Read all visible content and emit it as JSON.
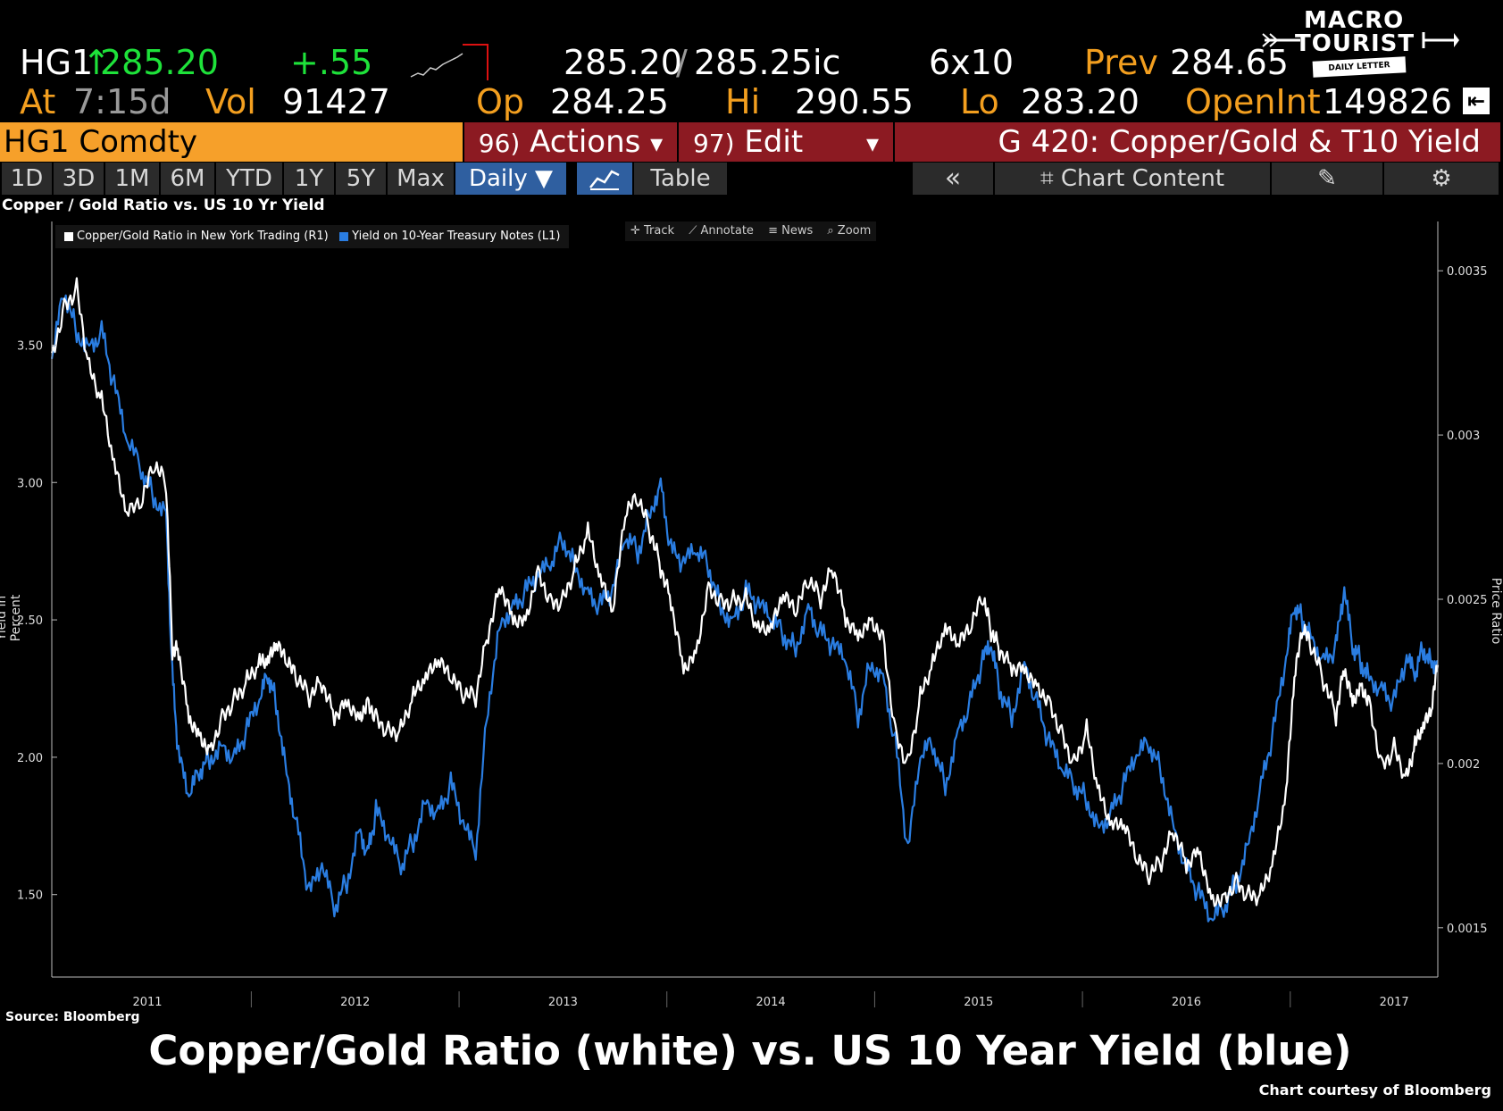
{
  "quote": {
    "ticker": "HG1",
    "arrow": "↑",
    "last": "285.20",
    "change": "+.55",
    "bid": "285.20",
    "ask": "285.25ic",
    "size": "6x10",
    "prev_label": "Prev",
    "prev": "284.65",
    "at_label": "At",
    "time": "7:15d",
    "vol_label": "Vol",
    "vol": "91427",
    "op_label": "Op",
    "op": "284.25",
    "hi_label": "Hi",
    "hi": "290.55",
    "lo_label": "Lo",
    "lo": "283.20",
    "openint_label": "OpenInt",
    "openint": "149826"
  },
  "logo": {
    "line1": "MACRO",
    "line2": "TOURIST",
    "tag": "DAILY LETTER"
  },
  "ticker_bar": {
    "security": "HG1 Comdty",
    "actions_num": "96)",
    "actions": "Actions",
    "edit_num": "97)",
    "edit": "Edit",
    "title": "G 420: Copper/Gold & T10 Yield"
  },
  "tabs": {
    "periods": [
      "1D",
      "3D",
      "1M",
      "6M",
      "YTD",
      "1Y",
      "5Y",
      "Max"
    ],
    "frequency": "Daily ▼",
    "table": "Table",
    "collapse": "«",
    "chart_content": "Chart Content"
  },
  "tools": {
    "track": "Track",
    "annotate": "Annotate",
    "news": "News",
    "zoom": "Zoom"
  },
  "colors": {
    "ratio": "#ffffff",
    "yield": "#2a7de1",
    "orange": "#f39f1f",
    "green": "#1ee23a",
    "bar_red": "#8c1a22"
  },
  "chart_data": {
    "type": "line",
    "title": "Copper / Gold Ratio vs. US 10 Yr Yield",
    "ylabel_left": "Yield in Percent",
    "ylabel_right": "Price Ratio",
    "yleft_ticks": [
      "3.50",
      "3.00",
      "2.50",
      "2.00",
      "1.50"
    ],
    "yleft_range": [
      1.2,
      3.95
    ],
    "yright_ticks": [
      "0.0035",
      "0.003",
      "0.0025",
      "0.002",
      "0.0015"
    ],
    "yright_range": [
      0.00135,
      0.00365
    ],
    "xlabels": [
      "2011",
      "2012",
      "2013",
      "2014",
      "2015",
      "2016",
      "2017"
    ],
    "x_range": [
      2010.54,
      2017.21
    ],
    "series": [
      {
        "name": "Yield on 10-Year Treasury Notes (L1)",
        "axis": "left",
        "color": "#2a7de1",
        "x": [
          2010.54,
          2010.6,
          2010.66,
          2010.72,
          2010.78,
          2010.84,
          2010.9,
          2010.97,
          2011.03,
          2011.09,
          2011.12,
          2011.15,
          2011.2,
          2011.25,
          2011.3,
          2011.36,
          2011.42,
          2011.48,
          2011.54,
          2011.58,
          2011.62,
          2011.67,
          2011.72,
          2011.78,
          2011.84,
          2011.9,
          2011.96,
          2012.02,
          2012.06,
          2012.1,
          2012.16,
          2012.22,
          2012.28,
          2012.34,
          2012.4,
          2012.46,
          2012.52,
          2012.58,
          2012.64,
          2012.7,
          2012.76,
          2012.82,
          2012.88,
          2012.94,
          2013.0,
          2013.06,
          2013.12,
          2013.18,
          2013.24,
          2013.3,
          2013.36,
          2013.42,
          2013.47,
          2013.52,
          2013.58,
          2013.64,
          2013.7,
          2013.76,
          2013.82,
          2013.88,
          2013.94,
          2014.0,
          2014.06,
          2014.12,
          2014.18,
          2014.24,
          2014.3,
          2014.36,
          2014.42,
          2014.48,
          2014.54,
          2014.6,
          2014.66,
          2014.72,
          2014.78,
          2014.84,
          2014.9,
          2014.96,
          2015.02,
          2015.06,
          2015.1,
          2015.16,
          2015.22,
          2015.28,
          2015.34,
          2015.4,
          2015.46,
          2015.52,
          2015.58,
          2015.64,
          2015.7,
          2015.76,
          2015.82,
          2015.88,
          2015.94,
          2016.0,
          2016.06,
          2016.12,
          2016.18,
          2016.24,
          2016.3,
          2016.36,
          2016.42,
          2016.48,
          2016.52,
          2016.56,
          2016.6,
          2016.66,
          2016.72,
          2016.76,
          2016.8,
          2016.84,
          2016.88,
          2016.94,
          2017.0,
          2017.06,
          2017.1,
          2017.14,
          2017.18,
          2017.21
        ],
        "y": [
          3.45,
          3.7,
          3.55,
          3.5,
          3.55,
          3.35,
          3.15,
          3.05,
          2.95,
          2.9,
          2.3,
          2.0,
          1.85,
          1.95,
          2.0,
          2.05,
          2.0,
          2.1,
          2.2,
          2.3,
          2.2,
          1.95,
          1.75,
          1.5,
          1.6,
          1.45,
          1.55,
          1.75,
          1.65,
          1.8,
          1.7,
          1.6,
          1.7,
          1.85,
          1.8,
          1.9,
          1.75,
          1.65,
          2.2,
          2.5,
          2.55,
          2.6,
          2.65,
          2.7,
          2.8,
          2.7,
          2.6,
          2.55,
          2.6,
          2.8,
          2.75,
          2.9,
          3.0,
          2.75,
          2.7,
          2.75,
          2.7,
          2.55,
          2.5,
          2.6,
          2.55,
          2.5,
          2.45,
          2.4,
          2.55,
          2.45,
          2.4,
          2.35,
          2.15,
          2.35,
          2.3,
          2.05,
          1.65,
          2.0,
          2.05,
          1.9,
          2.1,
          2.2,
          2.35,
          2.4,
          2.25,
          2.15,
          2.35,
          2.2,
          2.05,
          1.95,
          1.9,
          1.85,
          1.75,
          1.8,
          1.9,
          2.0,
          2.05,
          1.95,
          1.75,
          1.6,
          1.5,
          1.4,
          1.45,
          1.55,
          1.7,
          1.9,
          2.1,
          2.35,
          2.55,
          2.5,
          2.45,
          2.35,
          2.4,
          2.6,
          2.4,
          2.35,
          2.3,
          2.25,
          2.2,
          2.35,
          2.3,
          2.4,
          2.35,
          2.35
        ]
      },
      {
        "name": "Copper/Gold Ratio in New York Trading (R1)",
        "axis": "right",
        "color": "#ffffff",
        "x": [
          2010.54,
          2010.6,
          2010.66,
          2010.72,
          2010.78,
          2010.84,
          2010.9,
          2010.97,
          2011.03,
          2011.09,
          2011.12,
          2011.15,
          2011.2,
          2011.25,
          2011.3,
          2011.36,
          2011.42,
          2011.48,
          2011.54,
          2011.58,
          2011.62,
          2011.67,
          2011.72,
          2011.78,
          2011.84,
          2011.9,
          2011.96,
          2012.02,
          2012.06,
          2012.1,
          2012.16,
          2012.22,
          2012.28,
          2012.34,
          2012.4,
          2012.46,
          2012.52,
          2012.58,
          2012.64,
          2012.7,
          2012.76,
          2012.82,
          2012.88,
          2012.94,
          2013.0,
          2013.06,
          2013.12,
          2013.18,
          2013.24,
          2013.3,
          2013.36,
          2013.42,
          2013.47,
          2013.52,
          2013.58,
          2013.64,
          2013.7,
          2013.76,
          2013.82,
          2013.88,
          2013.94,
          2014.0,
          2014.06,
          2014.12,
          2014.18,
          2014.24,
          2014.3,
          2014.36,
          2014.42,
          2014.48,
          2014.54,
          2014.6,
          2014.66,
          2014.72,
          2014.78,
          2014.84,
          2014.9,
          2014.96,
          2015.02,
          2015.06,
          2015.1,
          2015.16,
          2015.22,
          2015.28,
          2015.34,
          2015.4,
          2015.46,
          2015.52,
          2015.58,
          2015.64,
          2015.7,
          2015.76,
          2015.82,
          2015.88,
          2015.94,
          2016.0,
          2016.06,
          2016.12,
          2016.18,
          2016.24,
          2016.3,
          2016.36,
          2016.42,
          2016.48,
          2016.52,
          2016.56,
          2016.6,
          2016.66,
          2016.72,
          2016.76,
          2016.8,
          2016.84,
          2016.88,
          2016.94,
          2017.0,
          2017.06,
          2017.1,
          2017.14,
          2017.18,
          2017.21
        ],
        "y": [
          0.00325,
          0.0034,
          0.00345,
          0.0032,
          0.0031,
          0.0029,
          0.00275,
          0.00278,
          0.0029,
          0.00285,
          0.00235,
          0.00235,
          0.00215,
          0.0021,
          0.00205,
          0.00215,
          0.0022,
          0.00225,
          0.0023,
          0.0023,
          0.00235,
          0.0023,
          0.00225,
          0.0022,
          0.00225,
          0.00215,
          0.0022,
          0.00215,
          0.0022,
          0.00215,
          0.0021,
          0.0021,
          0.0022,
          0.00225,
          0.0023,
          0.00225,
          0.0022,
          0.0022,
          0.0024,
          0.00255,
          0.00245,
          0.00245,
          0.0026,
          0.0025,
          0.0025,
          0.0026,
          0.0027,
          0.00255,
          0.00245,
          0.00275,
          0.0028,
          0.0027,
          0.0026,
          0.0025,
          0.0023,
          0.00235,
          0.00255,
          0.0025,
          0.0025,
          0.0025,
          0.0024,
          0.0024,
          0.0025,
          0.00245,
          0.00255,
          0.0025,
          0.0026,
          0.00245,
          0.0024,
          0.00245,
          0.0024,
          0.0021,
          0.002,
          0.0022,
          0.0023,
          0.0024,
          0.00235,
          0.0024,
          0.0025,
          0.0024,
          0.00235,
          0.0023,
          0.0023,
          0.00225,
          0.0022,
          0.0021,
          0.002,
          0.0021,
          0.0019,
          0.0018,
          0.0018,
          0.0017,
          0.00165,
          0.0017,
          0.0018,
          0.0017,
          0.00175,
          0.0016,
          0.0016,
          0.00165,
          0.0016,
          0.0016,
          0.0017,
          0.0019,
          0.00225,
          0.0024,
          0.00235,
          0.00225,
          0.00215,
          0.0023,
          0.0022,
          0.00225,
          0.0022,
          0.002,
          0.00205,
          0.00195,
          0.00205,
          0.0021,
          0.00215,
          0.0023
        ]
      }
    ]
  },
  "source_label": "Source: Bloomberg",
  "caption": "Copper/Gold Ratio (white) vs. US 10 Year Yield (blue)",
  "credit": "Chart courtesy of Bloomberg"
}
